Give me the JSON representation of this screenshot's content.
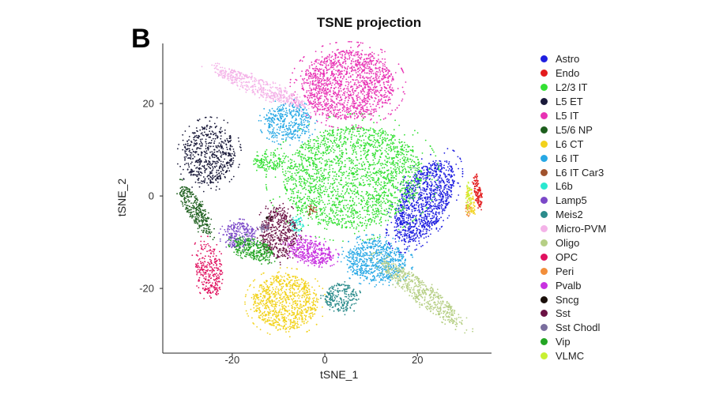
{
  "panel_label": "B",
  "chart_data": {
    "type": "scatter",
    "title": "TSNE projection",
    "xlabel": "tSNE_1",
    "ylabel": "tSNE_2",
    "xlim": [
      -35,
      36
    ],
    "ylim": [
      -34,
      33
    ],
    "xticks": [
      -20,
      0,
      20
    ],
    "yticks": [
      20,
      0,
      -20
    ],
    "grid": false,
    "legend_position": "right",
    "series": [
      {
        "name": "Astro",
        "color": "#1f1fe0",
        "clusters": [
          {
            "cx": 21.5,
            "cy": -1,
            "rx": 5,
            "ry": 10,
            "angle": -30,
            "n": 1200
          }
        ]
      },
      {
        "name": "Endo",
        "color": "#e31a1c",
        "clusters": [
          {
            "cx": 33,
            "cy": 1,
            "rx": 0.7,
            "ry": 3.5,
            "angle": 10,
            "n": 120
          }
        ]
      },
      {
        "name": "L2/3 IT",
        "color": "#33e033",
        "clusters": [
          {
            "cx": 6,
            "cy": 4,
            "rx": 15,
            "ry": 11,
            "angle": 5,
            "n": 2200
          },
          {
            "cx": -12,
            "cy": 7.5,
            "rx": 3.5,
            "ry": 2,
            "angle": 0,
            "n": 140
          }
        ]
      },
      {
        "name": "L5 ET",
        "color": "#1a1a3a",
        "clusters": [
          {
            "cx": -25,
            "cy": 9,
            "rx": 5.5,
            "ry": 6.5,
            "angle": -10,
            "n": 600
          }
        ]
      },
      {
        "name": "L5 IT",
        "color": "#e832b4",
        "clusters": [
          {
            "cx": 5,
            "cy": 24,
            "rx": 10,
            "ry": 7.5,
            "angle": 0,
            "n": 1500
          }
        ]
      },
      {
        "name": "L5/6 NP",
        "color": "#1d5e1d",
        "clusters": [
          {
            "cx": -28,
            "cy": -3,
            "rx": 1.8,
            "ry": 6,
            "angle": 30,
            "n": 300
          }
        ]
      },
      {
        "name": "L6 CT",
        "color": "#f2d21b",
        "clusters": [
          {
            "cx": -8.5,
            "cy": -23,
            "rx": 7,
            "ry": 6,
            "angle": 0,
            "n": 900
          },
          {
            "cx": 31.5,
            "cy": -1,
            "rx": 0.8,
            "ry": 3,
            "angle": 10,
            "n": 60
          }
        ]
      },
      {
        "name": "L6 IT",
        "color": "#27a8e5",
        "clusters": [
          {
            "cx": 11,
            "cy": -14,
            "rx": 6.5,
            "ry": 4.5,
            "angle": -5,
            "n": 700
          },
          {
            "cx": -8,
            "cy": 16,
            "rx": 5,
            "ry": 4,
            "angle": 0,
            "n": 400
          }
        ]
      },
      {
        "name": "L6 IT Car3",
        "color": "#a0522d",
        "clusters": [
          {
            "cx": -3,
            "cy": -3,
            "rx": 1,
            "ry": 1,
            "angle": 0,
            "n": 30
          }
        ]
      },
      {
        "name": "L6b",
        "color": "#2ae8d0",
        "clusters": [
          {
            "cx": -6,
            "cy": -6,
            "rx": 1.5,
            "ry": 2,
            "angle": 0,
            "n": 60
          }
        ]
      },
      {
        "name": "Lamp5",
        "color": "#7b48c8",
        "clusters": [
          {
            "cx": -18.5,
            "cy": -8.5,
            "rx": 3.5,
            "ry": 2.8,
            "angle": 0,
            "n": 250
          }
        ]
      },
      {
        "name": "Meis2",
        "color": "#2b8b8b",
        "clusters": [
          {
            "cx": 3.5,
            "cy": -22,
            "rx": 3.5,
            "ry": 3,
            "angle": 0,
            "n": 250
          }
        ]
      },
      {
        "name": "Micro-PVM",
        "color": "#f4b3e8",
        "clusters": [
          {
            "cx": -14,
            "cy": 23.5,
            "rx": 11,
            "ry": 1.7,
            "angle": -22,
            "n": 500
          }
        ]
      },
      {
        "name": "Oligo",
        "color": "#b6cf85",
        "clusters": [
          {
            "cx": 21,
            "cy": -21,
            "rx": 11,
            "ry": 2.2,
            "angle": -38,
            "n": 550
          }
        ]
      },
      {
        "name": "OPC",
        "color": "#e0115f",
        "clusters": [
          {
            "cx": -25,
            "cy": -16,
            "rx": 2.8,
            "ry": 6,
            "angle": 10,
            "n": 300
          }
        ]
      },
      {
        "name": "Peri",
        "color": "#f28e3b",
        "clusters": [
          {
            "cx": 31,
            "cy": -3,
            "rx": 0.6,
            "ry": 1.5,
            "angle": 0,
            "n": 30
          }
        ]
      },
      {
        "name": "Pvalb",
        "color": "#c832e0",
        "clusters": [
          {
            "cx": -3,
            "cy": -12,
            "rx": 5,
            "ry": 2.5,
            "angle": -15,
            "n": 400
          }
        ]
      },
      {
        "name": "Sncg",
        "color": "#1a0f0a",
        "clusters": [
          {
            "cx": -12,
            "cy": -5,
            "rx": 0.8,
            "ry": 0.8,
            "angle": 0,
            "n": 20
          }
        ]
      },
      {
        "name": "Sst",
        "color": "#6b1144",
        "clusters": [
          {
            "cx": -10,
            "cy": -8,
            "rx": 4,
            "ry": 5.5,
            "angle": 0,
            "n": 450
          }
        ]
      },
      {
        "name": "Sst Chodl",
        "color": "#7a6e9e",
        "clusters": [
          {
            "cx": -13,
            "cy": -7,
            "rx": 1,
            "ry": 1,
            "angle": 0,
            "n": 25
          }
        ]
      },
      {
        "name": "Vip",
        "color": "#23a523",
        "clusters": [
          {
            "cx": -15.5,
            "cy": -11.5,
            "rx": 4.5,
            "ry": 2.2,
            "angle": -20,
            "n": 300
          }
        ]
      },
      {
        "name": "VLMC",
        "color": "#c8f032",
        "clusters": [
          {
            "cx": 31,
            "cy": 0,
            "rx": 0.6,
            "ry": 3,
            "angle": 0,
            "n": 50
          }
        ]
      }
    ]
  }
}
